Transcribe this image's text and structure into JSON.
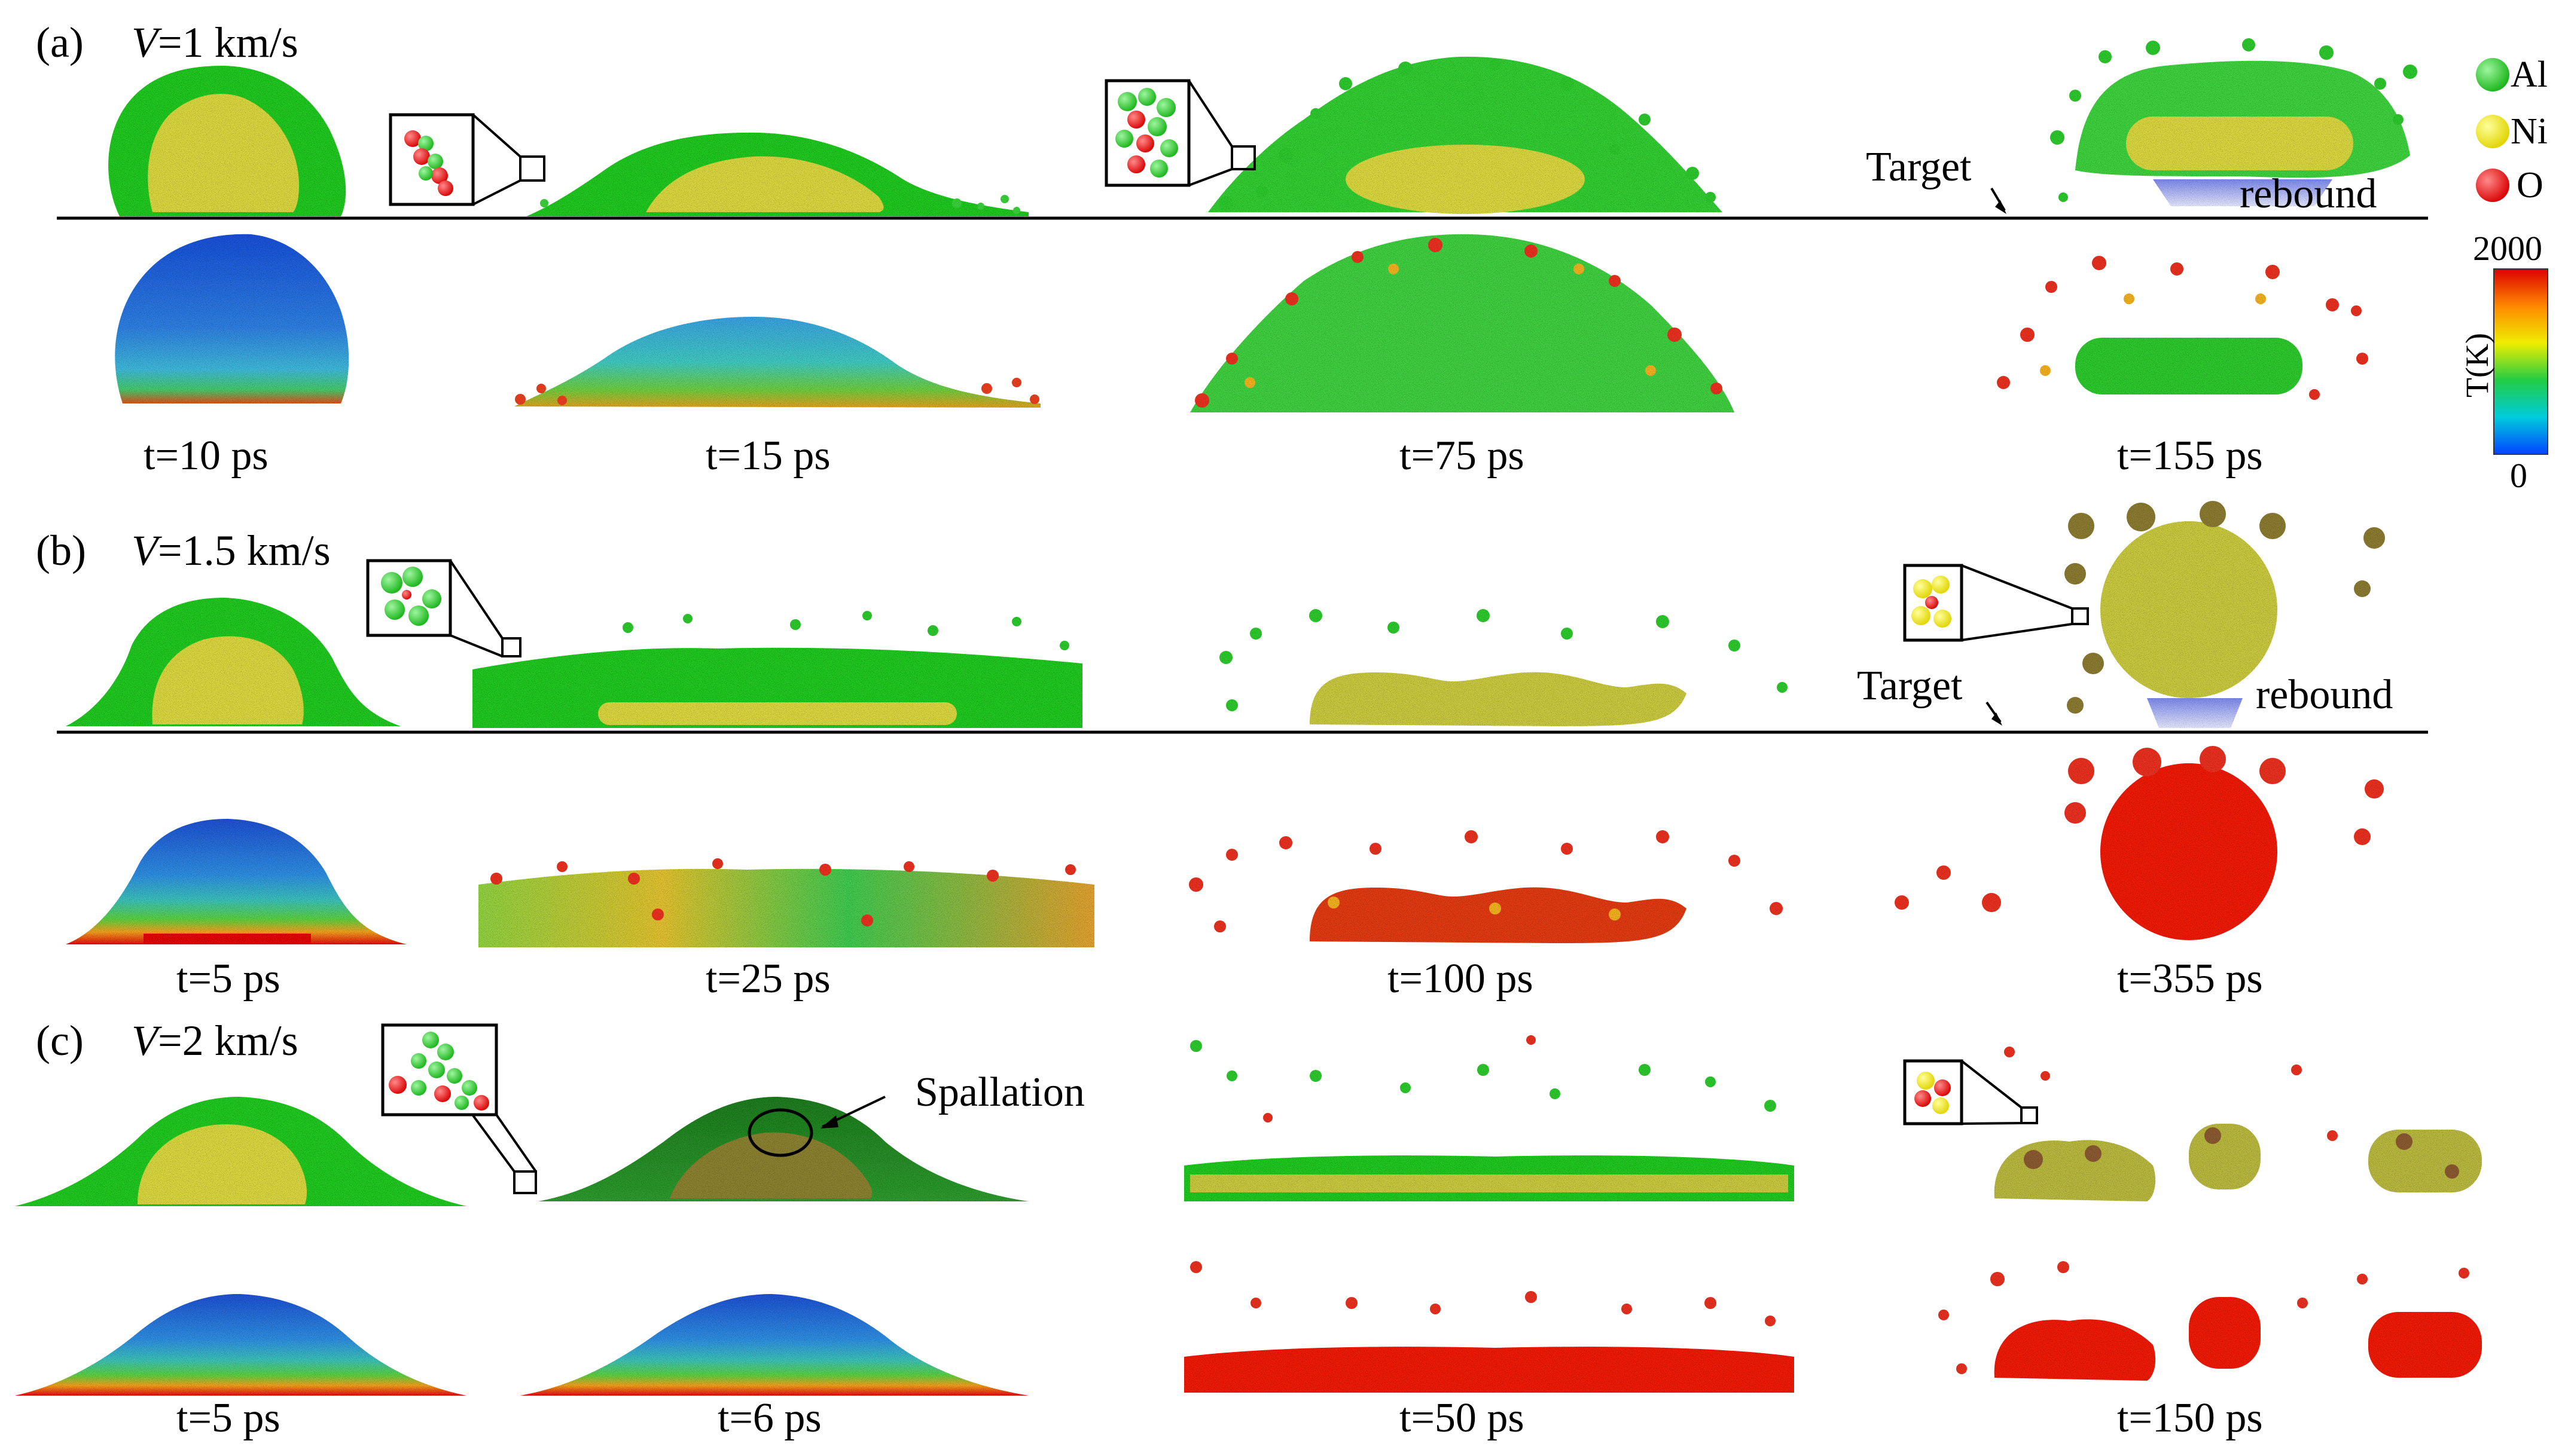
{
  "figure": {
    "legend": {
      "items": [
        {
          "label": "Al",
          "color": "#22cc22"
        },
        {
          "label": "Ni",
          "color": "#f2ee20"
        },
        {
          "label": "O",
          "color": "#ee1111"
        }
      ]
    },
    "colorbar": {
      "label": "T(K)",
      "max": "2000",
      "min": "0",
      "colors": [
        "#dd0000",
        "#ff8800",
        "#eeee00",
        "#22cc44",
        "#00ccdd",
        "#0044ff"
      ]
    },
    "panels": [
      {
        "label": "(a)",
        "velocity_symbol": "V",
        "velocity_value": "=1 km/s",
        "times": [
          "t=10 ps",
          "t=15 ps",
          "t=75 ps",
          "t=155 ps"
        ],
        "target": "Target",
        "rebound": "rebound"
      },
      {
        "label": "(b)",
        "velocity_symbol": "V",
        "velocity_value": "=1.5 km/s",
        "times": [
          "t=5 ps",
          "t=25 ps",
          "t=100 ps",
          "t=355 ps"
        ],
        "target": "Target",
        "rebound": "rebound"
      },
      {
        "label": "(c)",
        "velocity_symbol": "V",
        "velocity_value": "=2 km/s",
        "times": [
          "t=5 ps",
          "t=6 ps",
          "t=50 ps",
          "t=150 ps"
        ],
        "spallation": "Spallation"
      }
    ]
  }
}
